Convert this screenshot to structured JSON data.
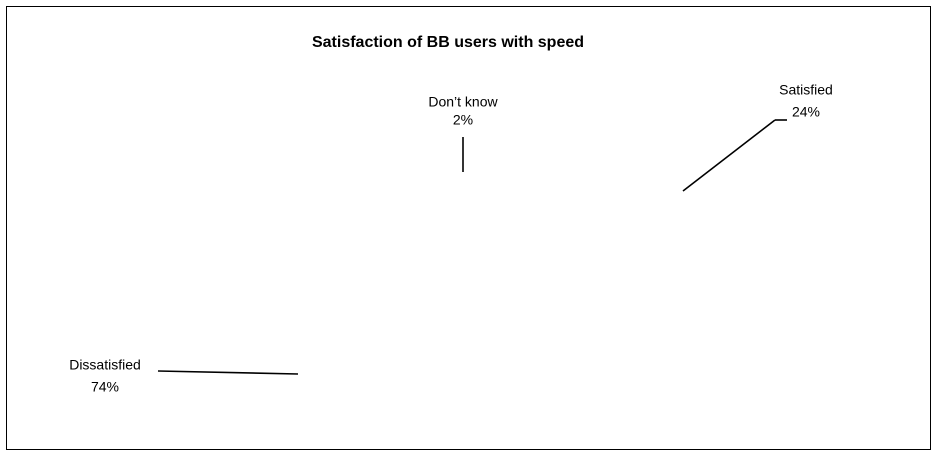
{
  "chart_data": {
    "type": "pie",
    "title": "Satisfaction of BB users with speed",
    "categories": [
      "Don’t know",
      "Satisfied",
      "Dissatisfied"
    ],
    "values": [
      2,
      24,
      74
    ],
    "value_labels": [
      "2%",
      "24%",
      "74%"
    ],
    "colors": [
      "#ffffff",
      "#ffffff",
      "#ffffff"
    ]
  }
}
